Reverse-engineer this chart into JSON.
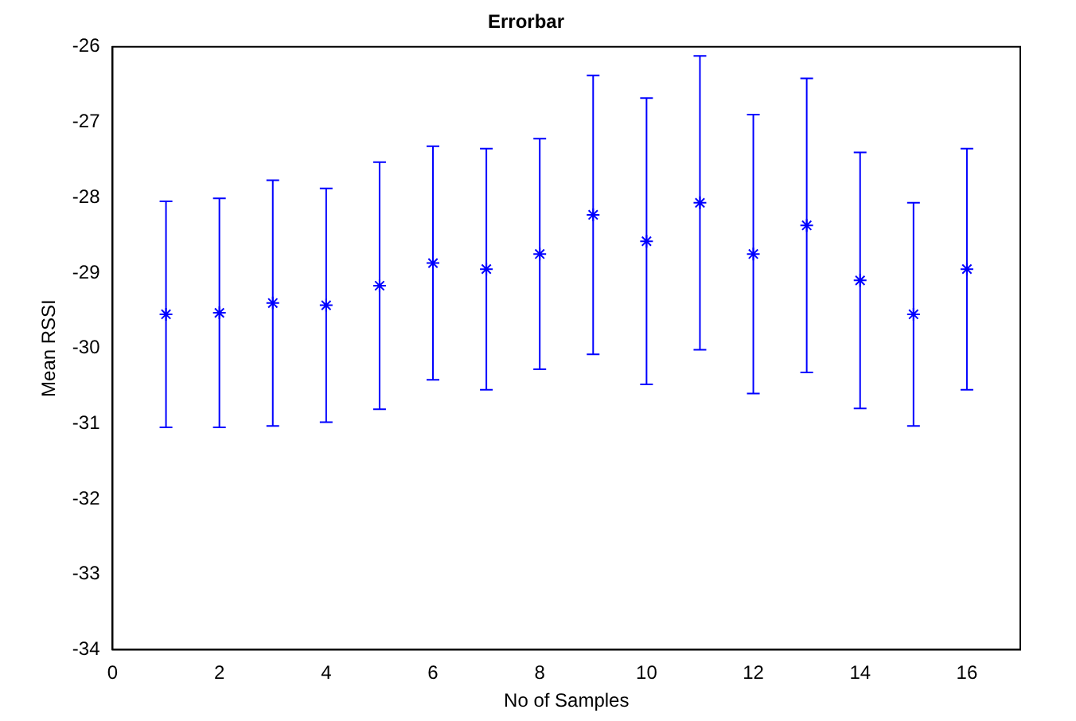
{
  "chart_data": {
    "type": "scatter",
    "title": "Errorbar",
    "xlabel": "No of Samples",
    "ylabel": "Mean RSSI",
    "x": [
      1,
      2,
      3,
      4,
      5,
      6,
      7,
      8,
      9,
      10,
      11,
      12,
      13,
      14,
      15,
      16
    ],
    "values": [
      -29.55,
      -29.53,
      -29.4,
      -29.43,
      -29.17,
      -28.87,
      -28.95,
      -28.75,
      -28.23,
      -28.58,
      -28.07,
      -28.75,
      -28.37,
      -29.1,
      -29.55,
      -28.95
    ],
    "errors": [
      1.5,
      1.52,
      1.63,
      1.55,
      1.64,
      1.55,
      1.6,
      1.53,
      1.85,
      1.9,
      1.95,
      1.85,
      1.95,
      1.7,
      1.48,
      1.6
    ],
    "color": "#0000ff",
    "marker": "cross",
    "grid": false,
    "legend": false,
    "xlim": [
      0,
      17
    ],
    "xticks": [
      0,
      2,
      4,
      6,
      8,
      10,
      12,
      14,
      16
    ],
    "ylim": [
      -34,
      -26
    ],
    "yticks": [
      -34,
      -33,
      -32,
      -31,
      -30,
      -29,
      -28,
      -27,
      -26
    ]
  }
}
